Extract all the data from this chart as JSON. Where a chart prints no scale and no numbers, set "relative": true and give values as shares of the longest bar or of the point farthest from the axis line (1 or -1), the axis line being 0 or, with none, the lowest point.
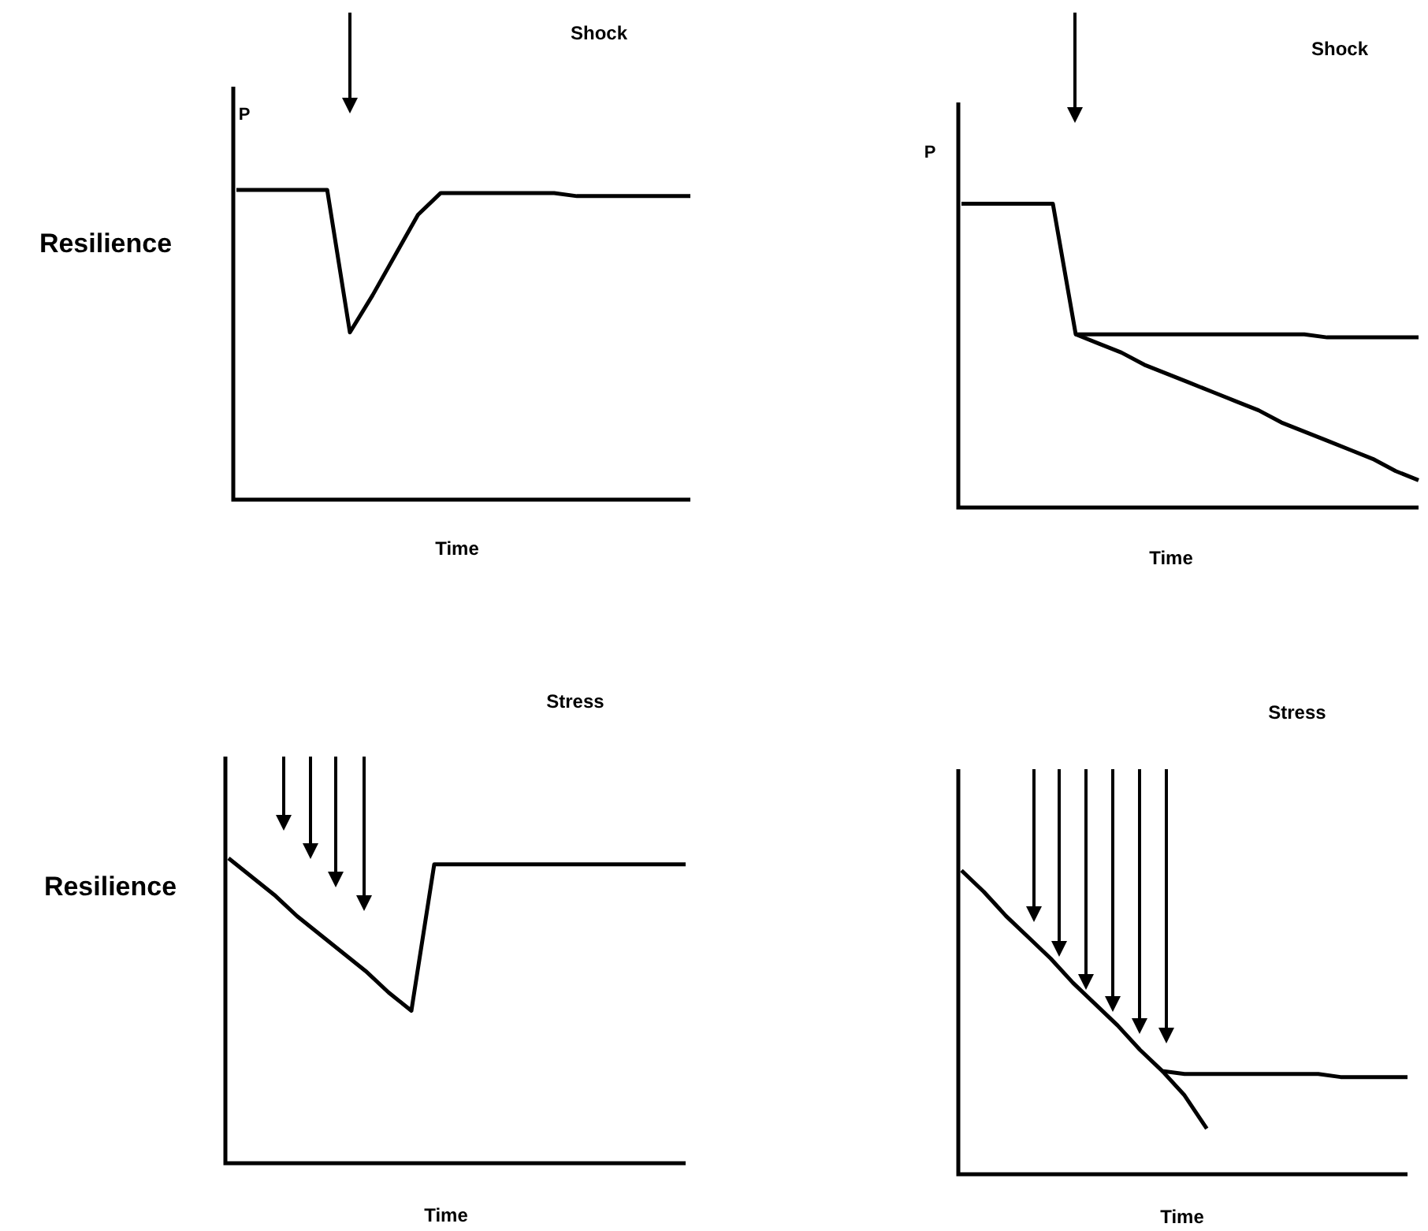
{
  "chart_data": [
    {
      "type": "line",
      "title": "Shock",
      "xlabel": "Time",
      "ylabel": "P",
      "annotations": [
        "Resilience"
      ],
      "relative": true,
      "categories": [
        null,
        null,
        null,
        null,
        null,
        null,
        null,
        null,
        null,
        null,
        null,
        null,
        null,
        null,
        null,
        null,
        null,
        null,
        null,
        null,
        null
      ],
      "series": [
        {
          "color": "#000000",
          "values": [
            1,
            1,
            1,
            1,
            1,
            0.54,
            0.66,
            0.79,
            0.92,
            0.99,
            0.99,
            0.99,
            0.99,
            0.99,
            0.99,
            0.98,
            0.98,
            0.98,
            0.98,
            0.98,
            0.98
          ]
        }
      ]
    },
    {
      "type": "line",
      "title": "Shock",
      "xlabel": "Time",
      "ylabel": "P",
      "relative": true,
      "categories": [
        null,
        null,
        null,
        null,
        null,
        null,
        null,
        null,
        null,
        null,
        null,
        null,
        null,
        null,
        null,
        null,
        null,
        null,
        null,
        null,
        null
      ],
      "series": [
        {
          "color": "#000000",
          "values": [
            1,
            1,
            1,
            1,
            1,
            0.57,
            0.57,
            0.57,
            0.57,
            0.57,
            0.57,
            0.57,
            0.57,
            0.57,
            0.57,
            0.57,
            0.56,
            0.56,
            0.56,
            0.56,
            0.56
          ]
        },
        {
          "color": "#000000",
          "values": [
            null,
            null,
            null,
            null,
            null,
            0.57,
            0.54,
            0.51,
            0.47,
            0.44,
            0.41,
            0.38,
            0.35,
            0.32,
            0.28,
            0.25,
            0.22,
            0.19,
            0.16,
            0.12,
            0.09
          ]
        }
      ]
    },
    {
      "type": "line",
      "title": "Stress",
      "xlabel": "Time",
      "ylabel": "Resilience",
      "relative": true,
      "categories": [
        null,
        null,
        null,
        null,
        null,
        null,
        null,
        null,
        null,
        null,
        null,
        null,
        null,
        null,
        null,
        null,
        null,
        null,
        null,
        null,
        null
      ],
      "series": [
        {
          "color": "#000000",
          "values": [
            1,
            0.94,
            0.88,
            0.81,
            0.75,
            0.69,
            0.63,
            0.56,
            0.5,
            0.98,
            0.98,
            0.98,
            0.98,
            0.98,
            0.98,
            0.98,
            0.98,
            0.98,
            0.98,
            0.98,
            0.98
          ]
        }
      ]
    },
    {
      "type": "line",
      "title": "Stress",
      "xlabel": "Time",
      "relative": true,
      "categories": [
        null,
        null,
        null,
        null,
        null,
        null,
        null,
        null,
        null,
        null,
        null,
        null,
        null,
        null,
        null,
        null,
        null,
        null,
        null,
        null,
        null
      ],
      "series": [
        {
          "color": "#000000",
          "values": [
            1,
            0.93,
            0.85,
            0.78,
            0.71,
            0.63,
            0.56,
            0.49,
            0.41,
            0.34,
            0.33,
            0.33,
            0.33,
            0.33,
            0.33,
            0.33,
            0.33,
            0.32,
            0.32,
            0.32,
            0.32
          ]
        },
        {
          "color": "#000000",
          "values": [
            null,
            null,
            null,
            null,
            null,
            null,
            null,
            null,
            null,
            0.34,
            0.26,
            0.15,
            null,
            null,
            null,
            null,
            null,
            null,
            null,
            null,
            null
          ]
        }
      ]
    }
  ]
}
